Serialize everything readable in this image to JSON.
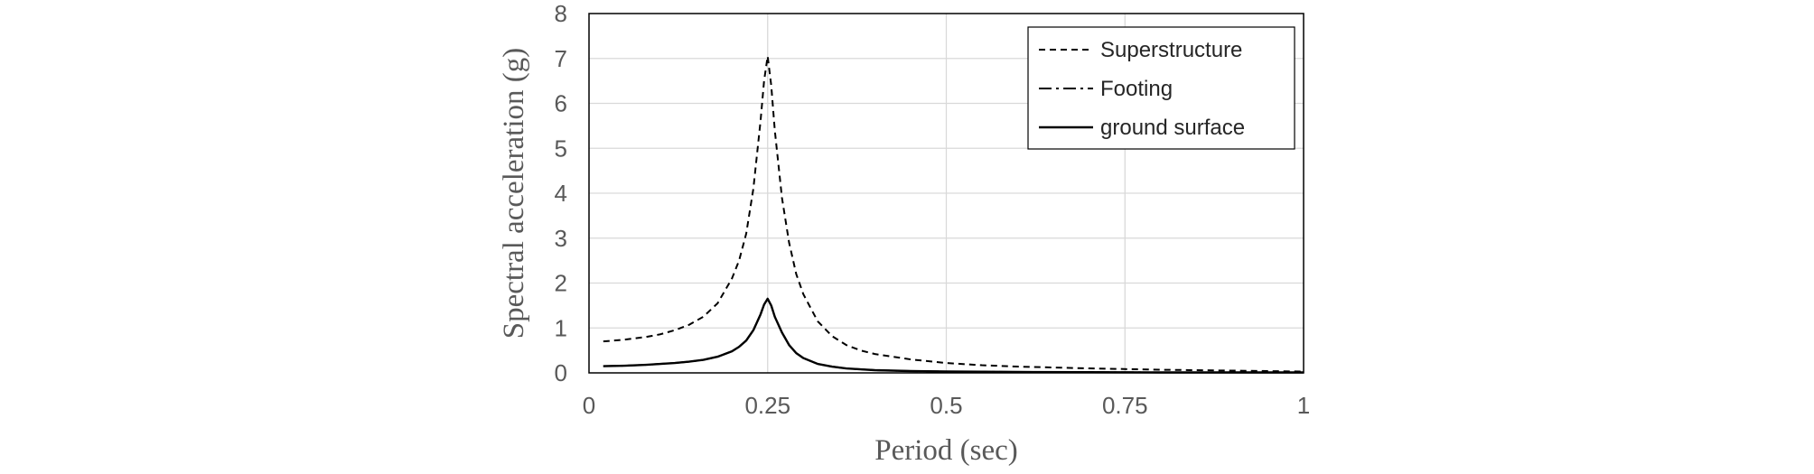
{
  "chart_data": {
    "type": "line",
    "title": "",
    "xlabel": "Period (sec)",
    "ylabel": "Spectral acceleration  (g)",
    "xlim": [
      0,
      1
    ],
    "ylim": [
      0,
      8
    ],
    "xticks": [
      0,
      0.25,
      0.5,
      0.75,
      1
    ],
    "xtick_labels": [
      "0",
      "0.25",
      "0.5",
      "0.75",
      "1"
    ],
    "yticks": [
      0,
      1,
      2,
      3,
      4,
      5,
      6,
      7,
      8
    ],
    "ytick_labels": [
      "0",
      "1",
      "2",
      "3",
      "4",
      "5",
      "6",
      "7",
      "8"
    ],
    "grid": true,
    "legend_position": "top-right",
    "series": [
      {
        "name": "Superstructure",
        "style": "dashed",
        "color": "#000000",
        "x": [
          0.02,
          0.05,
          0.08,
          0.1,
          0.12,
          0.14,
          0.16,
          0.18,
          0.2,
          0.21,
          0.22,
          0.23,
          0.24,
          0.245,
          0.25,
          0.255,
          0.26,
          0.27,
          0.28,
          0.29,
          0.3,
          0.32,
          0.34,
          0.36,
          0.38,
          0.4,
          0.45,
          0.5,
          0.55,
          0.6,
          0.7,
          0.8,
          0.9,
          1.0
        ],
        "y": [
          0.7,
          0.74,
          0.8,
          0.86,
          0.95,
          1.07,
          1.25,
          1.55,
          2.1,
          2.5,
          3.1,
          4.1,
          5.6,
          6.5,
          7.05,
          6.4,
          5.4,
          3.9,
          2.9,
          2.2,
          1.75,
          1.15,
          0.82,
          0.62,
          0.5,
          0.42,
          0.3,
          0.22,
          0.17,
          0.14,
          0.1,
          0.07,
          0.05,
          0.03
        ]
      },
      {
        "name": "Footing",
        "style": "dash-dot",
        "color": "#000000",
        "x": [
          0.02,
          0.05,
          0.08,
          0.1,
          0.12,
          0.14,
          0.16,
          0.18,
          0.2,
          0.21,
          0.22,
          0.23,
          0.24,
          0.245,
          0.25,
          0.255,
          0.26,
          0.27,
          0.28,
          0.29,
          0.3,
          0.32,
          0.34,
          0.36,
          0.38,
          0.4,
          0.45,
          0.5,
          0.55,
          0.6,
          0.7,
          0.8,
          0.9,
          1.0
        ],
        "y": [
          0.15,
          0.16,
          0.18,
          0.2,
          0.22,
          0.25,
          0.29,
          0.36,
          0.48,
          0.58,
          0.72,
          0.95,
          1.3,
          1.52,
          1.65,
          1.5,
          1.25,
          0.9,
          0.62,
          0.44,
          0.33,
          0.2,
          0.14,
          0.1,
          0.08,
          0.06,
          0.04,
          0.03,
          0.025,
          0.02,
          0.015,
          0.01,
          0.01,
          0.01
        ]
      },
      {
        "name": "ground surface",
        "style": "solid",
        "color": "#000000",
        "x": [
          0.02,
          0.05,
          0.08,
          0.1,
          0.12,
          0.14,
          0.16,
          0.18,
          0.2,
          0.21,
          0.22,
          0.23,
          0.24,
          0.245,
          0.25,
          0.255,
          0.26,
          0.27,
          0.28,
          0.29,
          0.3,
          0.32,
          0.34,
          0.36,
          0.38,
          0.4,
          0.45,
          0.5,
          0.55,
          0.6,
          0.7,
          0.8,
          0.9,
          1.0
        ],
        "y": [
          0.15,
          0.16,
          0.18,
          0.2,
          0.22,
          0.25,
          0.29,
          0.36,
          0.48,
          0.58,
          0.72,
          0.95,
          1.3,
          1.52,
          1.65,
          1.5,
          1.25,
          0.9,
          0.62,
          0.44,
          0.33,
          0.2,
          0.14,
          0.1,
          0.08,
          0.06,
          0.04,
          0.03,
          0.025,
          0.02,
          0.015,
          0.01,
          0.01,
          0.01
        ]
      }
    ],
    "colors": {
      "grid": "#d9d9d9",
      "frame": "#000000",
      "text": "#595959"
    }
  }
}
